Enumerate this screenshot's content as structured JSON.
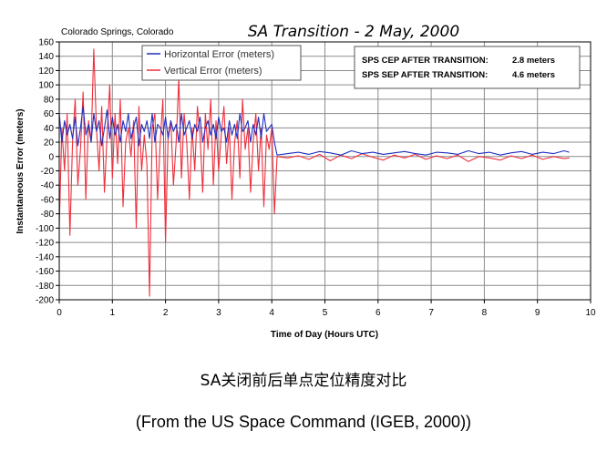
{
  "chart_data": {
    "type": "line",
    "title": "SA Transition - 2 May, 2000",
    "subtitle": "Colorado Springs, Colorado",
    "xlabel": "Time of Day (Hours UTC)",
    "ylabel": "Instantaneous Error (meters)",
    "xlim": [
      0,
      10
    ],
    "ylim": [
      -200,
      160
    ],
    "xticks": [
      0,
      1,
      2,
      3,
      4,
      5,
      6,
      7,
      8,
      9,
      10
    ],
    "yticks": [
      -200,
      -180,
      -160,
      -140,
      -120,
      -100,
      -80,
      -60,
      -40,
      -20,
      0,
      20,
      40,
      60,
      80,
      100,
      120,
      140,
      160
    ],
    "grid": true,
    "legend_position": "top-left",
    "annotations": [
      {
        "label": "SPS CEP AFTER TRANSITION:",
        "value": "2.8 meters"
      },
      {
        "label": "SPS SEP AFTER TRANSITION:",
        "value": "4.6 meters"
      }
    ],
    "series": [
      {
        "name": "Horizontal Error (meters)",
        "color": "#1f2fbf",
        "x": [
          0,
          0.05,
          0.1,
          0.15,
          0.2,
          0.25,
          0.3,
          0.35,
          0.4,
          0.45,
          0.5,
          0.55,
          0.6,
          0.65,
          0.7,
          0.75,
          0.8,
          0.85,
          0.9,
          0.95,
          1.0,
          1.05,
          1.1,
          1.15,
          1.2,
          1.25,
          1.3,
          1.35,
          1.4,
          1.45,
          1.5,
          1.55,
          1.6,
          1.65,
          1.7,
          1.75,
          1.8,
          1.85,
          1.9,
          1.95,
          2.0,
          2.05,
          2.1,
          2.15,
          2.2,
          2.25,
          2.3,
          2.35,
          2.4,
          2.45,
          2.5,
          2.55,
          2.6,
          2.65,
          2.7,
          2.75,
          2.8,
          2.85,
          2.9,
          2.95,
          3.0,
          3.05,
          3.1,
          3.15,
          3.2,
          3.25,
          3.3,
          3.35,
          3.4,
          3.45,
          3.5,
          3.55,
          3.6,
          3.65,
          3.7,
          3.75,
          3.8,
          3.85,
          3.9,
          3.95,
          4.0,
          4.05,
          4.1,
          4.3,
          4.5,
          4.7,
          4.9,
          5.1,
          5.3,
          5.5,
          5.7,
          5.9,
          6.1,
          6.3,
          6.5,
          6.7,
          6.9,
          7.1,
          7.3,
          7.5,
          7.7,
          7.9,
          8.1,
          8.3,
          8.5,
          8.7,
          8.9,
          9.1,
          9.3,
          9.5,
          9.6
        ],
        "values": [
          60,
          20,
          50,
          30,
          45,
          25,
          55,
          15,
          40,
          70,
          30,
          45,
          20,
          60,
          35,
          50,
          15,
          40,
          65,
          25,
          55,
          30,
          45,
          20,
          50,
          35,
          60,
          25,
          40,
          55,
          15,
          45,
          35,
          50,
          25,
          60,
          20,
          45,
          40,
          30,
          55,
          25,
          50,
          35,
          45,
          20,
          60,
          30,
          40,
          50,
          25,
          45,
          35,
          55,
          20,
          40,
          50,
          30,
          45,
          25,
          55,
          35,
          40,
          20,
          50,
          30,
          45,
          25,
          60,
          35,
          40,
          50,
          20,
          45,
          30,
          55,
          25,
          60,
          35,
          40,
          45,
          20,
          2,
          4,
          6,
          3,
          7,
          5,
          2,
          8,
          4,
          6,
          3,
          5,
          7,
          4,
          2,
          6,
          5,
          3,
          8,
          4,
          6,
          2,
          5,
          7,
          3,
          6,
          4,
          8,
          6
        ]
      },
      {
        "name": "Vertical Error (meters)",
        "color": "#ef2f3c",
        "x": [
          0,
          0.05,
          0.1,
          0.15,
          0.2,
          0.25,
          0.3,
          0.35,
          0.4,
          0.45,
          0.5,
          0.55,
          0.6,
          0.65,
          0.7,
          0.75,
          0.8,
          0.85,
          0.9,
          0.95,
          1.0,
          1.05,
          1.1,
          1.15,
          1.2,
          1.25,
          1.3,
          1.35,
          1.4,
          1.45,
          1.5,
          1.55,
          1.6,
          1.65,
          1.7,
          1.75,
          1.8,
          1.85,
          1.9,
          1.95,
          2.0,
          2.05,
          2.1,
          2.15,
          2.2,
          2.25,
          2.3,
          2.35,
          2.4,
          2.45,
          2.5,
          2.55,
          2.6,
          2.65,
          2.7,
          2.75,
          2.8,
          2.85,
          2.9,
          2.95,
          3.0,
          3.05,
          3.1,
          3.15,
          3.2,
          3.25,
          3.3,
          3.35,
          3.4,
          3.45,
          3.5,
          3.55,
          3.6,
          3.65,
          3.7,
          3.75,
          3.8,
          3.85,
          3.9,
          3.95,
          4.0,
          4.05,
          4.1,
          4.3,
          4.5,
          4.7,
          4.9,
          5.1,
          5.3,
          5.5,
          5.7,
          5.9,
          6.1,
          6.3,
          6.5,
          6.7,
          6.9,
          7.1,
          7.3,
          7.5,
          7.7,
          7.9,
          8.1,
          8.3,
          8.5,
          8.7,
          8.9,
          9.1,
          9.3,
          9.5,
          9.6
        ],
        "values": [
          -100,
          40,
          -20,
          60,
          -110,
          20,
          80,
          -40,
          10,
          90,
          -60,
          50,
          20,
          150,
          40,
          -20,
          70,
          -50,
          30,
          100,
          -30,
          60,
          -10,
          80,
          -70,
          20,
          40,
          0,
          50,
          -100,
          70,
          -20,
          30,
          -10,
          -195,
          40,
          60,
          -60,
          20,
          80,
          -120,
          30,
          50,
          -40,
          20,
          110,
          -30,
          60,
          20,
          -60,
          40,
          -20,
          70,
          30,
          -50,
          60,
          10,
          80,
          -40,
          50,
          -20,
          30,
          70,
          -10,
          40,
          -60,
          20,
          50,
          -30,
          80,
          10,
          40,
          -50,
          20,
          60,
          -20,
          40,
          -70,
          30,
          10,
          40,
          -80,
          0,
          -2,
          1,
          -4,
          3,
          -6,
          2,
          -3,
          4,
          -1,
          -5,
          2,
          -2,
          3,
          -4,
          1,
          -3,
          2,
          -7,
          0,
          -2,
          -5,
          1,
          -3,
          2,
          -4,
          0,
          -3,
          -2
        ]
      }
    ]
  },
  "captions": {
    "line1": "SA关闭前后单点定位精度对比",
    "line2": "(From the US Space Command (IGEB, 2000))"
  }
}
